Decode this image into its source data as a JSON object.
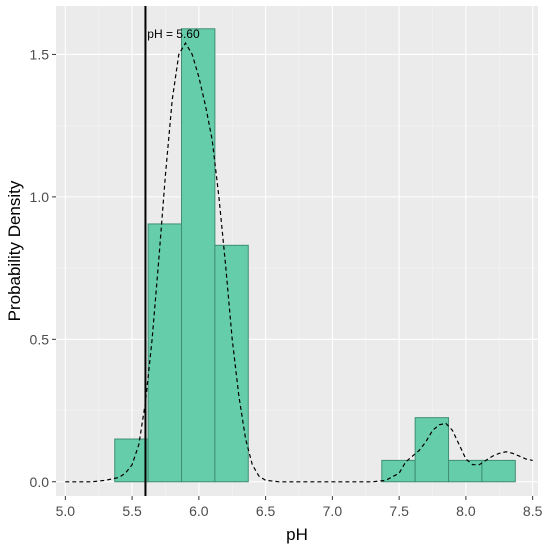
{
  "chart_data": {
    "type": "bar",
    "xlabel": "pH",
    "ylabel": "Probability Density",
    "xlim": [
      4.93,
      8.54
    ],
    "ylim": [
      -0.05,
      1.67
    ],
    "x_ticks": [
      5.0,
      5.5,
      6.0,
      6.5,
      7.0,
      7.5,
      8.0,
      8.5
    ],
    "x_tick_labels": [
      "5.0",
      "5.5",
      "6.0",
      "6.5",
      "7.0",
      "7.5",
      "8.0",
      "8.5"
    ],
    "y_ticks": [
      0.0,
      0.5,
      1.0,
      1.5
    ],
    "y_tick_labels": [
      "0.0",
      "0.5",
      "1.0",
      "1.5"
    ],
    "grid": true,
    "background": "#ebebeb",
    "histogram": {
      "fill": "#66cdaa",
      "stroke": "#3f8f72",
      "bins": [
        {
          "x0": 5.37,
          "x1": 5.62,
          "density": 0.15
        },
        {
          "x0": 5.62,
          "x1": 5.87,
          "density": 0.905
        },
        {
          "x0": 5.87,
          "x1": 6.12,
          "density": 1.59
        },
        {
          "x0": 6.12,
          "x1": 6.37,
          "density": 0.83
        },
        {
          "x0": 7.37,
          "x1": 7.62,
          "density": 0.075
        },
        {
          "x0": 7.62,
          "x1": 7.87,
          "density": 0.225
        },
        {
          "x0": 7.87,
          "x1": 8.12,
          "density": 0.075
        },
        {
          "x0": 8.12,
          "x1": 8.37,
          "density": 0.075
        }
      ]
    },
    "density_curve": {
      "style": "dashed",
      "color": "#000000",
      "x": [
        5.0,
        5.2,
        5.3,
        5.4,
        5.45,
        5.5,
        5.55,
        5.6,
        5.65,
        5.7,
        5.75,
        5.8,
        5.85,
        5.9,
        5.95,
        6.0,
        6.05,
        6.1,
        6.15,
        6.2,
        6.25,
        6.3,
        6.35,
        6.4,
        6.45,
        6.5,
        6.6,
        6.8,
        7.0,
        7.2,
        7.3,
        7.4,
        7.5,
        7.55,
        7.6,
        7.65,
        7.7,
        7.75,
        7.8,
        7.85,
        7.9,
        7.95,
        8.0,
        8.05,
        8.1,
        8.15,
        8.2,
        8.25,
        8.3,
        8.35,
        8.4,
        8.45,
        8.5
      ],
      "y": [
        0.0,
        0.0,
        0.005,
        0.015,
        0.03,
        0.06,
        0.13,
        0.28,
        0.5,
        0.78,
        1.08,
        1.34,
        1.5,
        1.54,
        1.5,
        1.42,
        1.32,
        1.2,
        1.0,
        0.76,
        0.5,
        0.3,
        0.15,
        0.06,
        0.02,
        0.005,
        0.0,
        0.0,
        0.0,
        0.0,
        0.0,
        0.005,
        0.03,
        0.07,
        0.09,
        0.11,
        0.14,
        0.18,
        0.2,
        0.205,
        0.18,
        0.13,
        0.08,
        0.06,
        0.06,
        0.075,
        0.09,
        0.1,
        0.105,
        0.1,
        0.09,
        0.08,
        0.075
      ]
    },
    "reference_line": {
      "x": 5.6,
      "label": "pH = 5.60",
      "color": "#000000"
    }
  }
}
